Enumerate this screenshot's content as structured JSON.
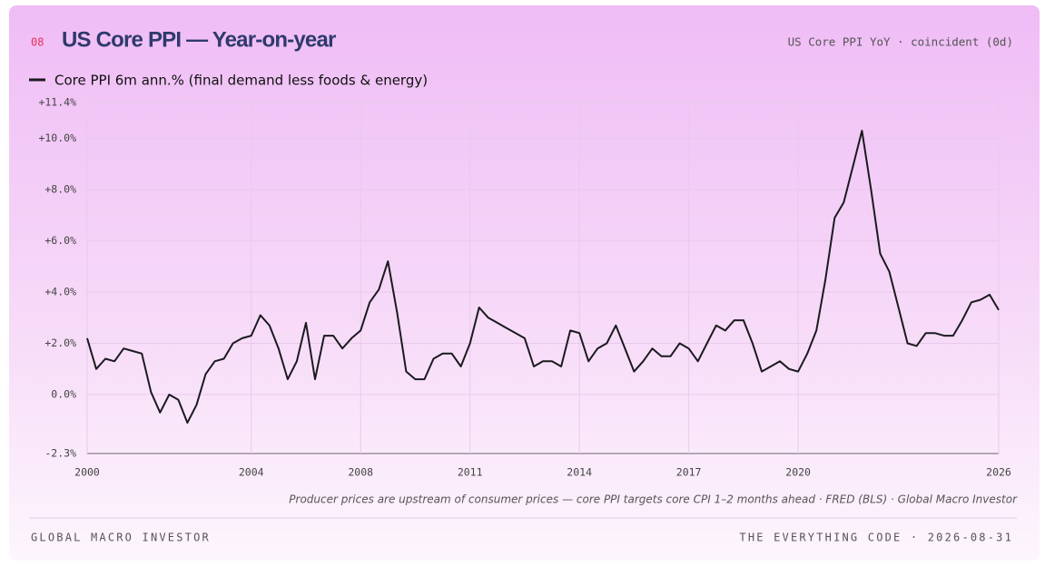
{
  "badge": "08",
  "subtitle": "US Core PPI YoY · coincident (0d)",
  "note": "Producer prices are upstream of consumer prices — core PPI targets core CPI 1–2 months ahead · FRED (BLS) · Global Macro Investor",
  "footer": {
    "left": "GLOBAL MACRO INVESTOR",
    "right": "THE EVERYTHING CODE · 2026-08-31"
  },
  "chart_data": {
    "type": "line",
    "title": "US Core PPI — Year-on-year",
    "categories": [
      "2000",
      null,
      null,
      null,
      null,
      null,
      null,
      null,
      null,
      null,
      null,
      null,
      null,
      null,
      null,
      null,
      null,
      null,
      "2004",
      null,
      null,
      null,
      null,
      null,
      null,
      null,
      null,
      null,
      null,
      null,
      "2008",
      null,
      null,
      null,
      null,
      null,
      null,
      null,
      null,
      null,
      null,
      null,
      "2011",
      null,
      null,
      null,
      null,
      null,
      null,
      null,
      null,
      null,
      null,
      null,
      "2014",
      null,
      null,
      null,
      null,
      null,
      null,
      null,
      null,
      null,
      null,
      null,
      "2017",
      null,
      null,
      null,
      null,
      null,
      null,
      null,
      null,
      null,
      null,
      null,
      "2020",
      null,
      null,
      null,
      null,
      null,
      null,
      null,
      null,
      null,
      null,
      null,
      null,
      null,
      null,
      null,
      null,
      null,
      null,
      null,
      null,
      null,
      "2026"
    ],
    "series": [
      {
        "name": "Core PPI 6m ann.% (final demand less foods & energy)",
        "color": "#1a1a1f",
        "values": [
          2.2,
          1.0,
          1.4,
          1.3,
          1.8,
          1.7,
          1.6,
          0.1,
          -0.7,
          0.0,
          -0.2,
          -1.1,
          -0.4,
          0.8,
          1.3,
          1.4,
          2.0,
          2.2,
          2.3,
          3.1,
          2.7,
          1.8,
          0.6,
          1.3,
          2.8,
          0.6,
          2.3,
          2.3,
          1.8,
          2.2,
          2.5,
          3.6,
          4.1,
          5.2,
          3.2,
          0.9,
          0.6,
          0.6,
          1.4,
          1.6,
          1.6,
          1.1,
          2.0,
          3.4,
          3.0,
          2.8,
          2.6,
          2.4,
          2.2,
          1.1,
          1.3,
          1.3,
          1.1,
          2.5,
          2.4,
          1.3,
          1.8,
          2.0,
          2.7,
          1.8,
          0.9,
          1.3,
          1.8,
          1.5,
          1.5,
          2.0,
          1.8,
          1.3,
          2.0,
          2.7,
          2.5,
          2.9,
          2.9,
          2.0,
          0.9,
          1.1,
          1.3,
          1.0,
          0.9,
          1.6,
          2.5,
          4.5,
          6.9,
          7.5,
          8.9,
          10.3,
          8.0,
          5.5,
          4.8,
          3.4,
          2.0,
          1.9,
          2.4,
          2.4,
          2.3,
          2.3,
          2.9,
          3.6,
          3.7,
          3.9,
          3.3
        ]
      }
    ],
    "ylim": [
      -2.3,
      11.4
    ],
    "yticks": [
      {
        "value": -2.3,
        "label": "-2.3%"
      },
      {
        "value": 0,
        "label": "0.0%"
      },
      {
        "value": 2,
        "label": "+2.0%"
      },
      {
        "value": 4,
        "label": "+4.0%"
      },
      {
        "value": 6,
        "label": "+6.0%"
      },
      {
        "value": 8,
        "label": "+8.0%"
      },
      {
        "value": 10,
        "label": "+10.0%"
      },
      {
        "value": 11.4,
        "label": "+11.4%"
      }
    ],
    "grid": true
  }
}
